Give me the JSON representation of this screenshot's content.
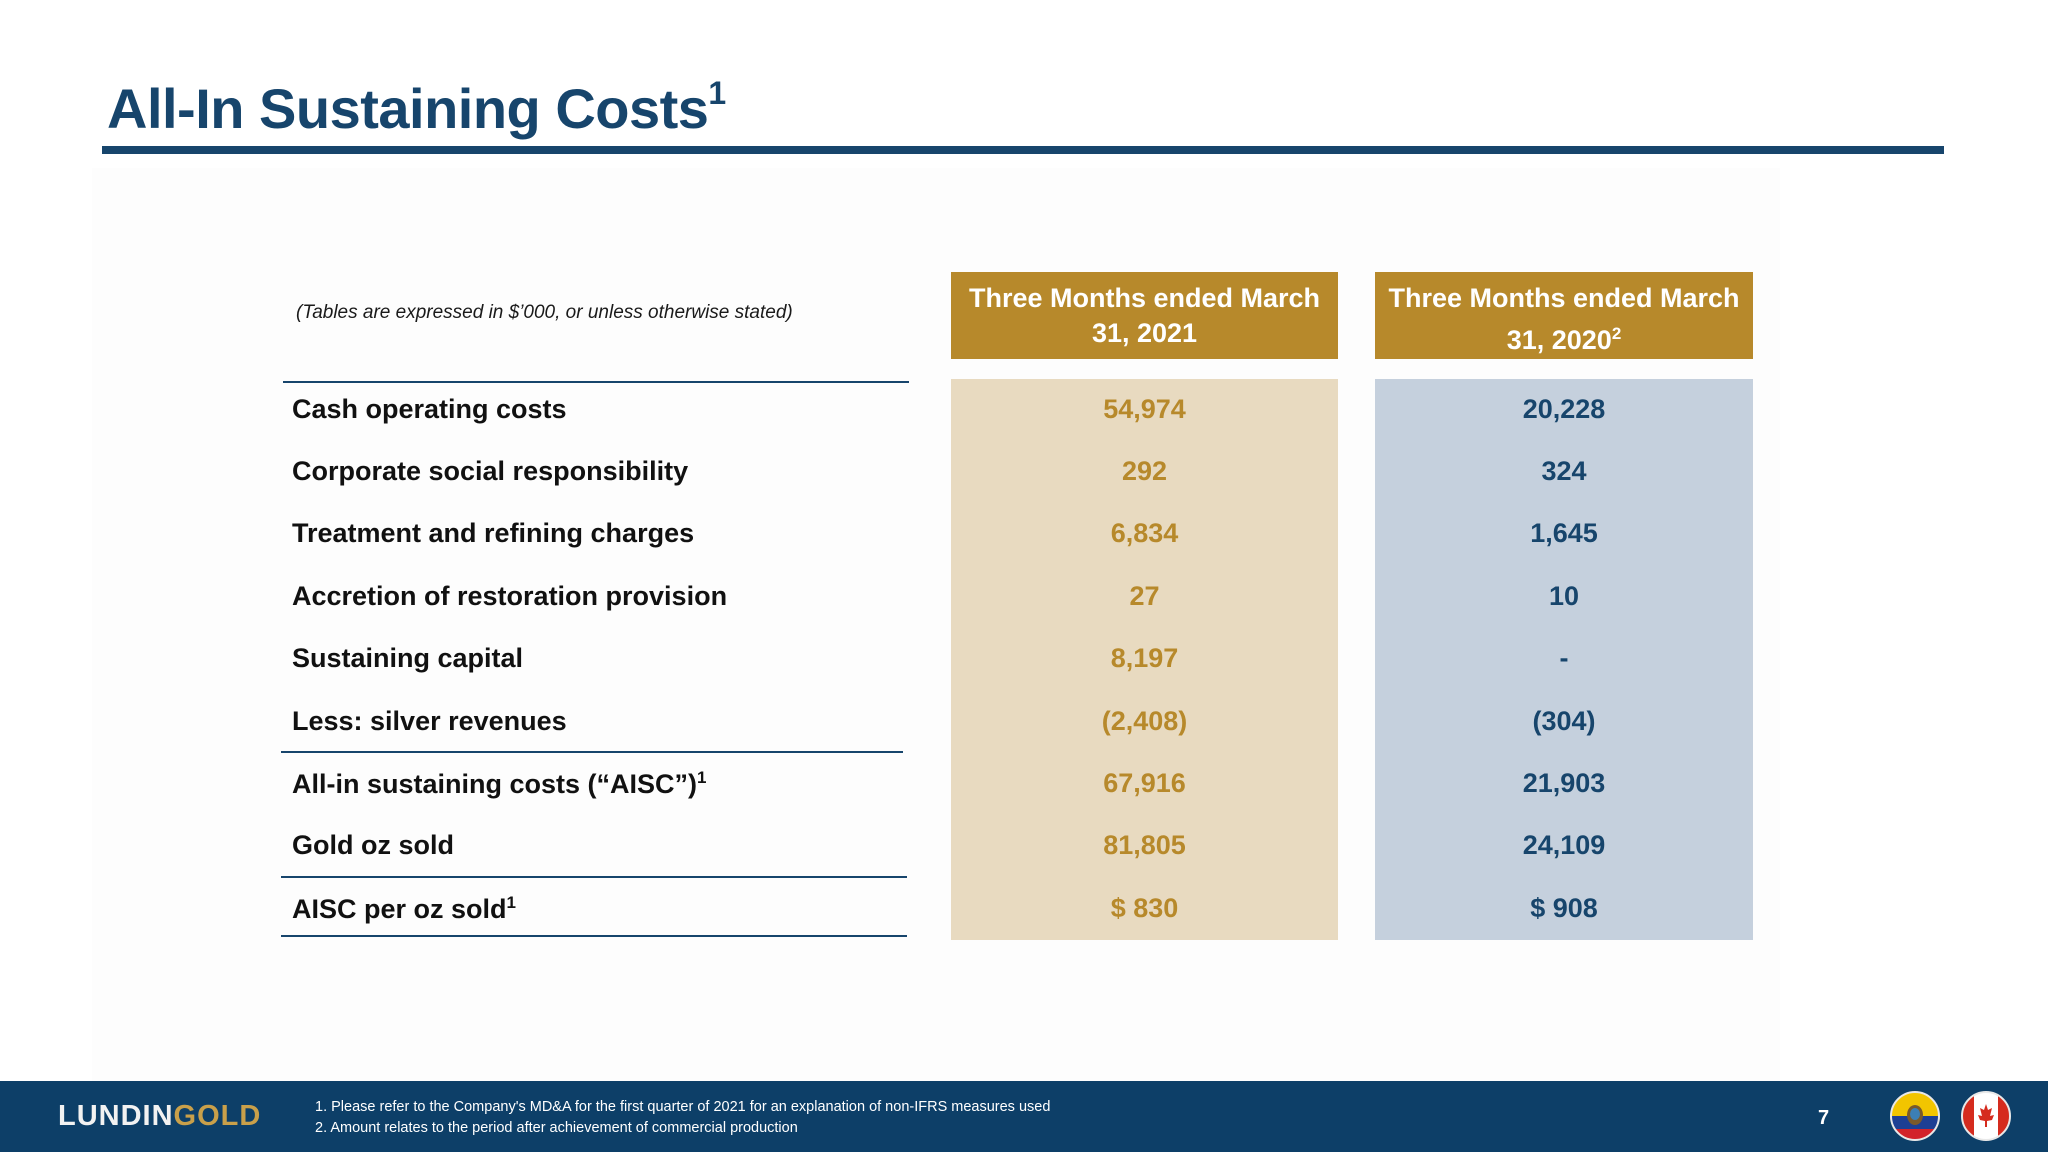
{
  "slide": {
    "title": "All-In Sustaining Costs",
    "title_sup": "1",
    "note": "(Tables are expressed in $’000, or unless otherwise stated)",
    "page_number": "7"
  },
  "table": {
    "columns": [
      {
        "line1": "Three Months ended March",
        "line2": "31, 2021",
        "sup": ""
      },
      {
        "line1": "Three Months ended March",
        "line2": "31, 2020",
        "sup": "2"
      }
    ],
    "rows": [
      {
        "label": "Cash operating costs",
        "sup": "",
        "q1_2021": "54,974",
        "q1_2020": "20,228"
      },
      {
        "label": "Corporate social responsibility",
        "sup": "",
        "q1_2021": "292",
        "q1_2020": "324"
      },
      {
        "label": "Treatment and refining charges",
        "sup": "",
        "q1_2021": "6,834",
        "q1_2020": "1,645"
      },
      {
        "label": "Accretion of restoration provision",
        "sup": "",
        "q1_2021": "27",
        "q1_2020": "10"
      },
      {
        "label": "Sustaining capital",
        "sup": "",
        "q1_2021": "8,197",
        "q1_2020": "-"
      },
      {
        "label": "Less: silver revenues",
        "sup": "",
        "q1_2021": "(2,408)",
        "q1_2020": "(304)"
      },
      {
        "label": "All-in sustaining costs (“AISC”)",
        "sup": "1",
        "q1_2021": "67,916",
        "q1_2020": "21,903"
      },
      {
        "label": "Gold oz sold",
        "sup": "",
        "q1_2021": "81,805",
        "q1_2020": "24,109"
      },
      {
        "label": "AISC per oz sold",
        "sup": "1",
        "q1_2021": "$ 830",
        "q1_2020": "$ 908"
      }
    ]
  },
  "footer": {
    "logo_part1": "LUNDIN",
    "logo_part2": "GOLD",
    "footnote1": "1. Please refer to the Company's MD&A for the first quarter of 2021 for an explanation of non-IFRS measures used",
    "footnote2": "2. Amount relates to the period after achievement of commercial production",
    "flags": [
      "ecuador-flag-icon",
      "canada-flag-icon"
    ]
  },
  "colors": {
    "navy": "#17456c",
    "gold": "#b7892b",
    "gold_light": "#e8dac0",
    "blue_light": "#c5d0dd",
    "footer": "#0d3f68"
  }
}
